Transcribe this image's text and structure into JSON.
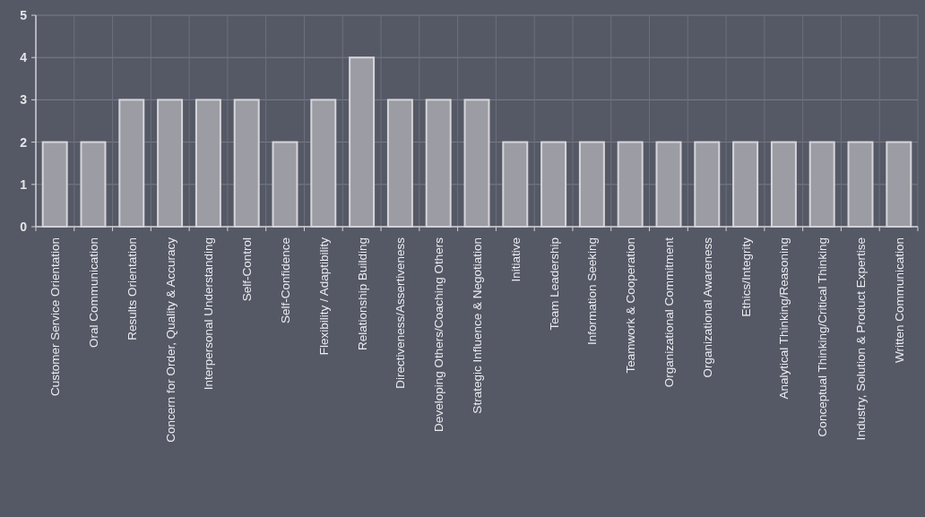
{
  "chart_data": {
    "type": "bar",
    "categories": [
      "Customer Service Orientation",
      "Oral Communication",
      "Results Orientation",
      "Concern for Order, Quality & Accuracy",
      "Interpersonal Understanding",
      "Self-Control",
      "Self-Confidence",
      "Flexibility / Adaptibility",
      "Relationship Building",
      "Directiveness/Assertiveness",
      "Developing Others/Coaching Others",
      "Strategic Influence & Negotiation",
      "Initiative",
      "Team Leadership",
      "Information Seeking",
      "Teamwork & Cooperation",
      "Organizational Commitment",
      "Organizational Awareness",
      "Ethics/Integrity",
      "Analytical Thinking/Reasoning",
      "Conceptual Thinking/Critical Thinking",
      "Industry, Solution & Product Expertise",
      "Written Communication"
    ],
    "values": [
      2,
      2,
      3,
      3,
      3,
      3,
      2,
      3,
      4,
      3,
      3,
      3,
      2,
      2,
      2,
      2,
      2,
      2,
      2,
      2,
      2,
      2,
      2
    ],
    "color": "#9b9ca4",
    "ylim": [
      0,
      5
    ],
    "yticks": [
      0,
      1,
      2,
      3,
      4,
      5
    ],
    "grid": true
  }
}
